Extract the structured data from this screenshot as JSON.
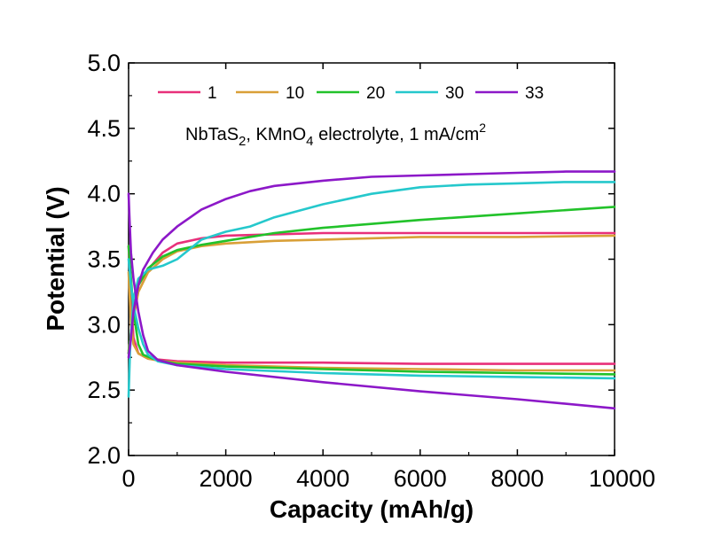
{
  "chart_data": {
    "type": "line",
    "title": "",
    "xlabel": "Capacity (mAh/g)",
    "ylabel": "Potential (V)",
    "xlim": [
      0,
      10000
    ],
    "ylim": [
      2.0,
      5.0
    ],
    "x_ticks": [
      "0",
      "2000",
      "4000",
      "6000",
      "8000",
      "10000"
    ],
    "y_ticks": [
      "2.0",
      "2.5",
      "3.0",
      "3.5",
      "4.0",
      "4.5",
      "5.0"
    ],
    "annotation": {
      "prefix": "NbTaS",
      "sub1": "2",
      "mid": ", KMnO",
      "sub2": "4",
      "suffix": " electrolyte, 1 mA/cm",
      "sup": "2"
    },
    "legend_position": "top",
    "grid": false,
    "series": [
      {
        "name": "1",
        "color": "#e8307a",
        "charge": [
          [
            0,
            2.78
          ],
          [
            100,
            3.1
          ],
          [
            200,
            3.3
          ],
          [
            400,
            3.42
          ],
          [
            700,
            3.55
          ],
          [
            1000,
            3.62
          ],
          [
            1500,
            3.66
          ],
          [
            2000,
            3.68
          ],
          [
            3000,
            3.69
          ],
          [
            4000,
            3.7
          ],
          [
            6000,
            3.7
          ],
          [
            8000,
            3.7
          ],
          [
            10000,
            3.7
          ]
        ],
        "discharge": [
          [
            0,
            3.6
          ],
          [
            50,
            3.2
          ],
          [
            100,
            2.9
          ],
          [
            200,
            2.78
          ],
          [
            400,
            2.74
          ],
          [
            700,
            2.73
          ],
          [
            1000,
            2.72
          ],
          [
            2000,
            2.71
          ],
          [
            4000,
            2.71
          ],
          [
            6000,
            2.7
          ],
          [
            8000,
            2.7
          ],
          [
            10000,
            2.7
          ]
        ]
      },
      {
        "name": "10",
        "color": "#d9a038",
        "charge": [
          [
            0,
            2.8
          ],
          [
            100,
            3.05
          ],
          [
            200,
            3.25
          ],
          [
            400,
            3.4
          ],
          [
            700,
            3.5
          ],
          [
            1000,
            3.56
          ],
          [
            1500,
            3.6
          ],
          [
            2000,
            3.62
          ],
          [
            3000,
            3.64
          ],
          [
            4000,
            3.65
          ],
          [
            6000,
            3.67
          ],
          [
            8000,
            3.67
          ],
          [
            10000,
            3.68
          ]
        ],
        "discharge": [
          [
            0,
            3.4
          ],
          [
            50,
            3.0
          ],
          [
            100,
            2.85
          ],
          [
            200,
            2.78
          ],
          [
            400,
            2.74
          ],
          [
            700,
            2.72
          ],
          [
            1000,
            2.71
          ],
          [
            2000,
            2.69
          ],
          [
            4000,
            2.67
          ],
          [
            6000,
            2.66
          ],
          [
            8000,
            2.65
          ],
          [
            10000,
            2.65
          ]
        ]
      },
      {
        "name": "20",
        "color": "#22c22a",
        "charge": [
          [
            0,
            2.78
          ],
          [
            100,
            3.1
          ],
          [
            200,
            3.3
          ],
          [
            400,
            3.43
          ],
          [
            700,
            3.52
          ],
          [
            1000,
            3.57
          ],
          [
            1500,
            3.61
          ],
          [
            2000,
            3.64
          ],
          [
            3000,
            3.7
          ],
          [
            4000,
            3.74
          ],
          [
            6000,
            3.8
          ],
          [
            8000,
            3.85
          ],
          [
            10000,
            3.9
          ]
        ],
        "discharge": [
          [
            0,
            3.6
          ],
          [
            50,
            3.35
          ],
          [
            100,
            3.1
          ],
          [
            200,
            2.85
          ],
          [
            300,
            2.77
          ],
          [
            500,
            2.74
          ],
          [
            700,
            2.72
          ],
          [
            1000,
            2.7
          ],
          [
            2000,
            2.68
          ],
          [
            4000,
            2.66
          ],
          [
            6000,
            2.64
          ],
          [
            8000,
            2.63
          ],
          [
            10000,
            2.62
          ]
        ]
      },
      {
        "name": "30",
        "color": "#25c8cc",
        "charge": [
          [
            0,
            2.45
          ],
          [
            30,
            2.8
          ],
          [
            100,
            3.2
          ],
          [
            200,
            3.35
          ],
          [
            400,
            3.42
          ],
          [
            700,
            3.45
          ],
          [
            1000,
            3.5
          ],
          [
            1500,
            3.65
          ],
          [
            2000,
            3.71
          ],
          [
            2500,
            3.75
          ],
          [
            3000,
            3.82
          ],
          [
            4000,
            3.92
          ],
          [
            5000,
            4.0
          ],
          [
            6000,
            4.05
          ],
          [
            7000,
            4.07
          ],
          [
            8000,
            4.08
          ],
          [
            9000,
            4.09
          ],
          [
            10000,
            4.09
          ]
        ],
        "discharge": [
          [
            0,
            3.5
          ],
          [
            50,
            3.3
          ],
          [
            100,
            3.15
          ],
          [
            200,
            2.97
          ],
          [
            300,
            2.85
          ],
          [
            400,
            2.77
          ],
          [
            600,
            2.72
          ],
          [
            1000,
            2.69
          ],
          [
            2000,
            2.66
          ],
          [
            4000,
            2.63
          ],
          [
            6000,
            2.61
          ],
          [
            8000,
            2.6
          ],
          [
            10000,
            2.59
          ]
        ]
      },
      {
        "name": "33",
        "color": "#8c18c8",
        "charge": [
          [
            0,
            2.75
          ],
          [
            50,
            2.9
          ],
          [
            100,
            3.1
          ],
          [
            200,
            3.3
          ],
          [
            300,
            3.42
          ],
          [
            500,
            3.55
          ],
          [
            700,
            3.65
          ],
          [
            1000,
            3.75
          ],
          [
            1500,
            3.88
          ],
          [
            2000,
            3.96
          ],
          [
            2500,
            4.02
          ],
          [
            3000,
            4.06
          ],
          [
            4000,
            4.1
          ],
          [
            5000,
            4.13
          ],
          [
            6000,
            4.14
          ],
          [
            7000,
            4.15
          ],
          [
            8000,
            4.16
          ],
          [
            9000,
            4.17
          ],
          [
            10000,
            4.17
          ]
        ],
        "discharge": [
          [
            0,
            4.0
          ],
          [
            20,
            3.8
          ],
          [
            50,
            3.55
          ],
          [
            100,
            3.35
          ],
          [
            200,
            3.1
          ],
          [
            300,
            2.92
          ],
          [
            400,
            2.8
          ],
          [
            600,
            2.73
          ],
          [
            1000,
            2.69
          ],
          [
            2000,
            2.64
          ],
          [
            4000,
            2.56
          ],
          [
            6000,
            2.49
          ],
          [
            8000,
            2.43
          ],
          [
            10000,
            2.36
          ]
        ]
      }
    ]
  }
}
